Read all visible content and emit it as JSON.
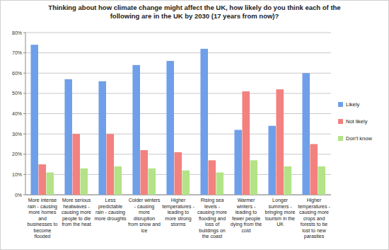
{
  "chart_data": {
    "type": "bar",
    "title": "Thinking about how climate change might affect the UK, how likely do you think each of the following are in the UK by 2030 (17 years from now)?",
    "categories": [
      "More intense rain - causing more homes and businesses to become flooded",
      "More serious heatwaves - causing more people to die from the heat",
      "Less predictable rain - causing more droughts",
      "Colder winters - causing more disruption from snow and ice",
      "Higher temperatures - leading to more strong storms",
      "Rising sea levels - causing more flooding and loss of buildings on the coast",
      "Warmer winters - leading to fewer people dying from the cold",
      "Longer summers - bringing more tourism in the UK",
      "Higher temperatures - causing more crops and forests to be lost to new parasites"
    ],
    "series": [
      {
        "name": "Likely",
        "color": "#6f9fe8",
        "values": [
          74,
          57,
          56,
          64,
          66,
          72,
          32,
          34,
          60
        ]
      },
      {
        "name": "Not likely",
        "color": "#f2817f",
        "values": [
          15,
          30,
          30,
          22,
          21,
          17,
          51,
          52,
          25
        ]
      },
      {
        "name": "Don't know",
        "color": "#b3e386",
        "values": [
          11,
          13,
          14,
          13,
          12,
          11,
          17,
          14,
          14
        ]
      }
    ],
    "ylim": [
      0,
      80
    ],
    "yticks": [
      {
        "value": 0,
        "label": "0%"
      },
      {
        "value": 10,
        "label": "10%"
      },
      {
        "value": 20,
        "label": "20%"
      },
      {
        "value": 30,
        "label": "30%"
      },
      {
        "value": 40,
        "label": "40%"
      },
      {
        "value": 50,
        "label": "50%"
      },
      {
        "value": 60,
        "label": "60%"
      },
      {
        "value": 70,
        "label": "70%"
      },
      {
        "value": 80,
        "label": "80%"
      }
    ],
    "grid": true,
    "legend": "right"
  }
}
